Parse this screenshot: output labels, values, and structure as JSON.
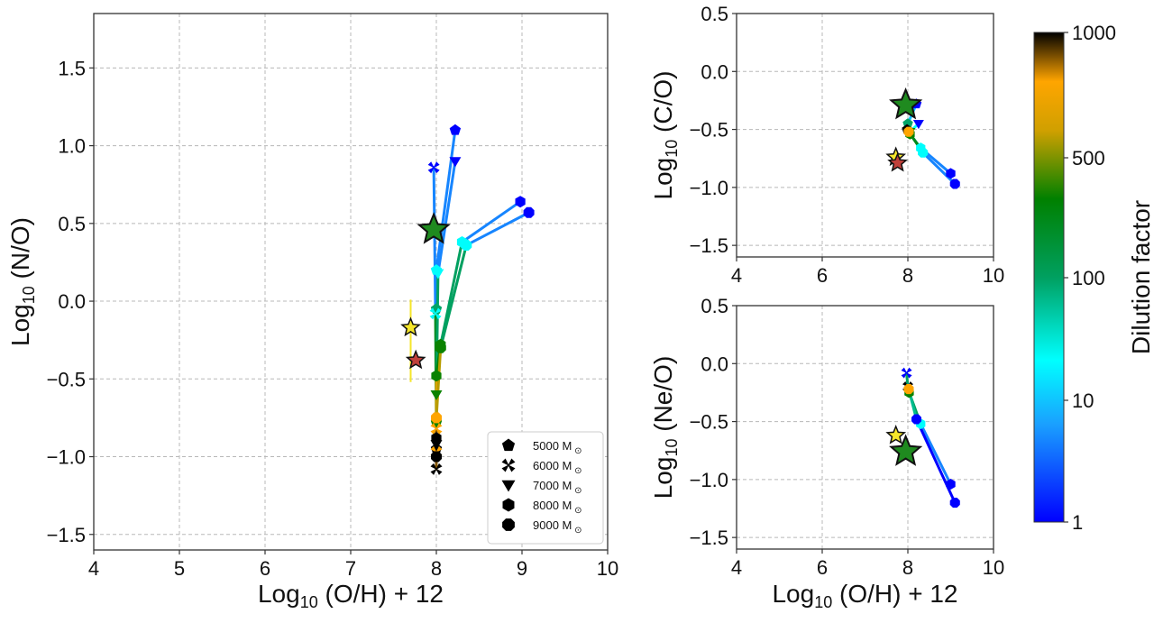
{
  "chart_data": [
    {
      "id": "no",
      "type": "scatter",
      "title": "",
      "xlabel": "Log10 (O/H) + 12",
      "ylabel": "Log10 (N/O)",
      "xlim": [
        4,
        10
      ],
      "ylim": [
        -1.6,
        1.85
      ],
      "xticks": [
        "4",
        "5",
        "6",
        "7",
        "8",
        "9",
        "10"
      ],
      "yticks": [
        "-1.5",
        "-1.0",
        "-0.5",
        "0.0",
        "0.5",
        "1.0",
        "1.5"
      ],
      "xtick_values": [
        4,
        5,
        6,
        7,
        8,
        9,
        10
      ],
      "ytick_values": [
        -1.5,
        -1.0,
        -0.5,
        0.0,
        0.5,
        1.0,
        1.5
      ],
      "grid": true,
      "legend": {
        "position": "bottom-right",
        "entries": [
          {
            "marker": "pentagon",
            "label": "5000 M",
            "sub": "⊙"
          },
          {
            "marker": "x",
            "label": "6000 M",
            "sub": "⊙"
          },
          {
            "marker": "triangle-down",
            "label": "7000 M",
            "sub": "⊙"
          },
          {
            "marker": "hexagon",
            "label": "8000 M",
            "sub": "⊙"
          },
          {
            "marker": "octagon",
            "label": "9000 M",
            "sub": "⊙"
          }
        ]
      },
      "series": [
        {
          "name": "5000 Msun",
          "marker": "pentagon",
          "points": [
            {
              "x": 8.22,
              "y": 1.1,
              "d": 1
            },
            {
              "x": 8.0,
              "y": 0.2,
              "d": 10
            },
            {
              "x": 8.0,
              "y": -0.05,
              "d": 30
            },
            {
              "x": 8.0,
              "y": -0.78,
              "d": 100
            },
            {
              "x": 8.0,
              "y": -0.95,
              "d": 1000
            }
          ]
        },
        {
          "name": "6000 Msun",
          "marker": "x",
          "points": [
            {
              "x": 7.97,
              "y": 0.86,
              "d": 1
            },
            {
              "x": 7.99,
              "y": -0.08,
              "d": 10
            },
            {
              "x": 8.0,
              "y": -0.82,
              "d": 500
            },
            {
              "x": 8.0,
              "y": -0.97,
              "d": 500
            },
            {
              "x": 8.0,
              "y": -1.08,
              "d": 1000
            }
          ]
        },
        {
          "name": "7000 Msun",
          "marker": "triangle-down",
          "points": [
            {
              "x": 8.22,
              "y": 0.9,
              "d": 1
            },
            {
              "x": 8.02,
              "y": 0.18,
              "d": 10
            },
            {
              "x": 8.0,
              "y": -0.6,
              "d": 100
            },
            {
              "x": 8.0,
              "y": -0.92,
              "d": 1000
            }
          ]
        },
        {
          "name": "8000 Msun",
          "marker": "hexagon",
          "points": [
            {
              "x": 8.98,
              "y": 0.64,
              "d": 1
            },
            {
              "x": 8.3,
              "y": 0.38,
              "d": 10
            },
            {
              "x": 8.05,
              "y": -0.28,
              "d": 100
            },
            {
              "x": 8.0,
              "y": -0.48,
              "d": 100
            },
            {
              "x": 8.0,
              "y": -0.88,
              "d": 1000
            }
          ]
        },
        {
          "name": "9000 Msun",
          "marker": "octagon",
          "points": [
            {
              "x": 9.08,
              "y": 0.57,
              "d": 1
            },
            {
              "x": 8.35,
              "y": 0.36,
              "d": 10
            },
            {
              "x": 8.05,
              "y": -0.3,
              "d": 100
            },
            {
              "x": 8.0,
              "y": -0.75,
              "d": 500
            },
            {
              "x": 8.0,
              "y": -1.0,
              "d": 1000
            }
          ]
        }
      ],
      "stars": [
        {
          "x": 7.97,
          "y": 0.46,
          "color": "#1f8a1f",
          "size": "large"
        },
        {
          "x": 7.7,
          "y": -0.17,
          "color": "#f5e62a",
          "size": "small",
          "err_y": [
            0.0,
            -0.35
          ]
        },
        {
          "x": 7.76,
          "y": -0.38,
          "color": "#c0403a",
          "size": "small"
        }
      ]
    },
    {
      "id": "co",
      "type": "scatter",
      "xlabel": "",
      "ylabel": "Log10 (C/O)",
      "xlim": [
        4,
        10
      ],
      "ylim": [
        -1.6,
        0.5
      ],
      "xticks": [
        "4",
        "6",
        "8",
        "10"
      ],
      "yticks": [
        "-1.5",
        "-1.0",
        "-0.5",
        "0.0",
        "0.5"
      ],
      "xtick_values": [
        4,
        6,
        8,
        10
      ],
      "ytick_values": [
        -1.5,
        -1.0,
        -0.5,
        0.0,
        0.5
      ],
      "grid": true,
      "series": [
        {
          "name": "5000 Msun",
          "marker": "pentagon",
          "points": [
            {
              "x": 8.2,
              "y": -0.28,
              "d": 1
            },
            {
              "x": 8.0,
              "y": -0.45,
              "d": 30
            },
            {
              "x": 7.98,
              "y": -0.5,
              "d": 1000
            }
          ]
        },
        {
          "name": "7000 Msun",
          "marker": "triangle-down",
          "points": [
            {
              "x": 8.25,
              "y": -0.45,
              "d": 1
            },
            {
              "x": 8.05,
              "y": -0.52,
              "d": 100
            }
          ]
        },
        {
          "name": "8000 Msun",
          "marker": "hexagon",
          "points": [
            {
              "x": 9.0,
              "y": -0.88,
              "d": 1
            },
            {
              "x": 8.3,
              "y": -0.66,
              "d": 10
            },
            {
              "x": 8.05,
              "y": -0.54,
              "d": 100
            }
          ]
        },
        {
          "name": "9000 Msun",
          "marker": "octagon",
          "points": [
            {
              "x": 9.1,
              "y": -0.97,
              "d": 1
            },
            {
              "x": 8.35,
              "y": -0.7,
              "d": 10
            },
            {
              "x": 8.02,
              "y": -0.52,
              "d": 500
            }
          ]
        }
      ],
      "stars": [
        {
          "x": 7.95,
          "y": -0.29,
          "color": "#1f8a1f",
          "size": "large"
        },
        {
          "x": 7.72,
          "y": -0.74,
          "color": "#f5e62a",
          "size": "small"
        },
        {
          "x": 7.76,
          "y": -0.79,
          "color": "#c0403a",
          "size": "small"
        }
      ]
    },
    {
      "id": "neo",
      "type": "scatter",
      "xlabel": "Log10 (O/H) + 12",
      "ylabel": "Log10 (Ne/O)",
      "xlim": [
        4,
        10
      ],
      "ylim": [
        -1.6,
        0.5
      ],
      "xticks": [
        "4",
        "6",
        "8",
        "10"
      ],
      "yticks": [
        "-1.5",
        "-1.0",
        "-0.5",
        "0.0",
        "0.5"
      ],
      "xtick_values": [
        4,
        6,
        8,
        10
      ],
      "ytick_values": [
        -1.5,
        -1.0,
        -0.5,
        0.0,
        0.5
      ],
      "grid": true,
      "series": [
        {
          "name": "6000 Msun",
          "marker": "x",
          "points": [
            {
              "x": 7.97,
              "y": -0.08,
              "d": 1
            },
            {
              "x": 8.0,
              "y": -0.2,
              "d": 1000
            }
          ]
        },
        {
          "name": "8000 Msun",
          "marker": "hexagon",
          "points": [
            {
              "x": 9.0,
              "y": -1.04,
              "d": 1
            },
            {
              "x": 8.3,
              "y": -0.52,
              "d": 10
            },
            {
              "x": 8.03,
              "y": -0.25,
              "d": 100
            }
          ]
        },
        {
          "name": "9000 Msun",
          "marker": "octagon",
          "points": [
            {
              "x": 9.1,
              "y": -1.2,
              "d": 1
            },
            {
              "x": 8.2,
              "y": -0.48,
              "d": 1
            },
            {
              "x": 8.02,
              "y": -0.22,
              "d": 500
            }
          ]
        }
      ],
      "stars": [
        {
          "x": 7.72,
          "y": -0.62,
          "color": "#f5e62a",
          "size": "small"
        },
        {
          "x": 7.95,
          "y": -0.76,
          "color": "#1f8a1f",
          "size": "large"
        }
      ]
    }
  ],
  "colorbar": {
    "label": "Dilution factor",
    "scale": "log",
    "range": [
      1,
      1000
    ],
    "ticks": [
      {
        "value": 1000,
        "label": "1000"
      },
      {
        "value": 500,
        "label": "500"
      },
      {
        "value": 100,
        "label": "100"
      },
      {
        "value": 10,
        "label": "10"
      },
      {
        "value": 1,
        "label": "1"
      }
    ],
    "stops": [
      {
        "f": 0.0,
        "color": "#0000ff"
      },
      {
        "f": 0.2,
        "color": "#1aa0ff"
      },
      {
        "f": 0.33,
        "color": "#00ffff"
      },
      {
        "f": 0.5,
        "color": "#00a060"
      },
      {
        "f": 0.66,
        "color": "#008000"
      },
      {
        "f": 0.8,
        "color": "#d0a000"
      },
      {
        "f": 0.9,
        "color": "#ffa500"
      },
      {
        "f": 1.0,
        "color": "#000000"
      }
    ]
  }
}
